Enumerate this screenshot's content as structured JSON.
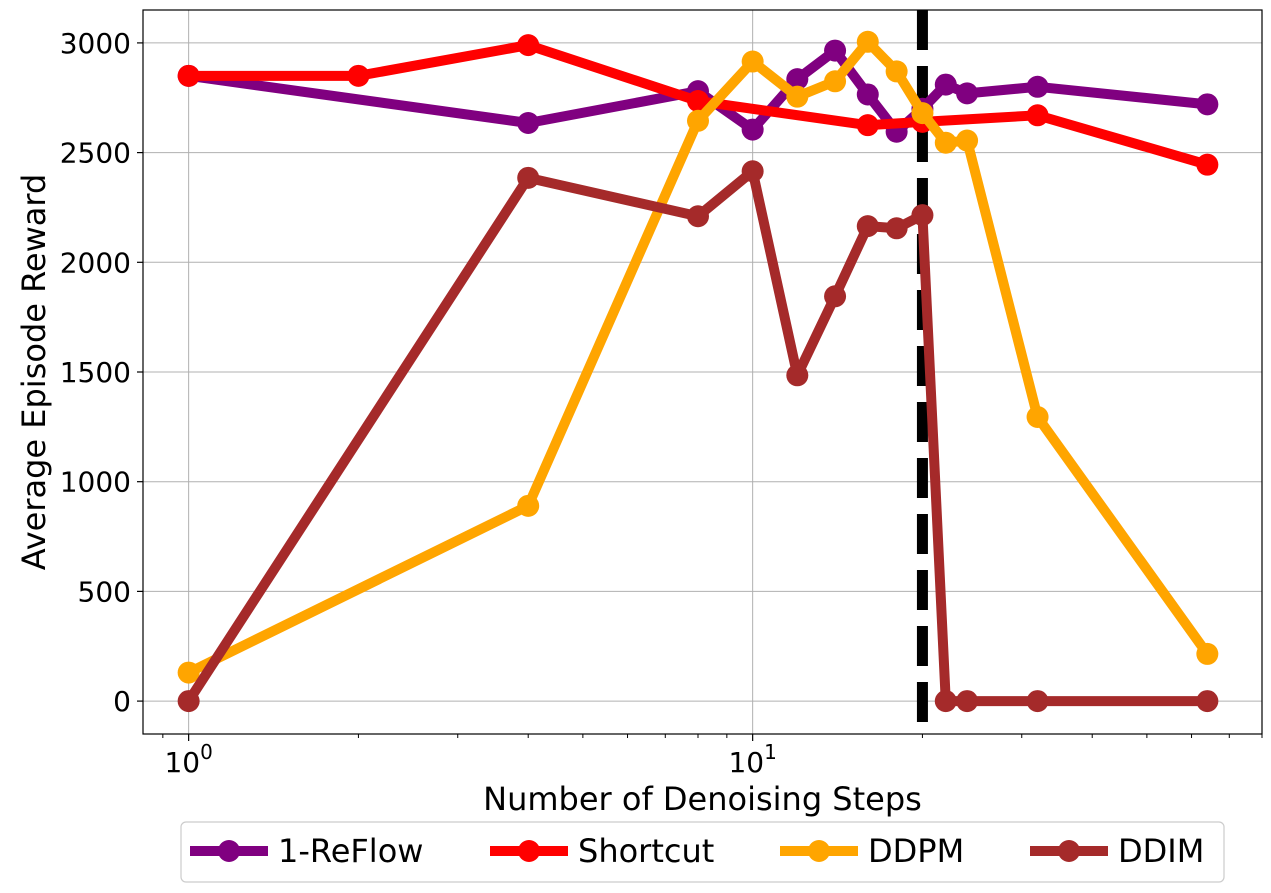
{
  "chart_data": {
    "type": "line",
    "title": "",
    "xlabel": "Number of Denoising Steps",
    "ylabel": "Average Episode Reward",
    "xscale": "log",
    "xlim": [
      0.83,
      80
    ],
    "ylim": [
      -150,
      3150
    ],
    "grid": true,
    "legend_position": "bottom-center-outside",
    "xticks": [
      {
        "base": "10",
        "exp": "0",
        "value": 1
      },
      {
        "base": "10",
        "exp": "1",
        "value": 10
      }
    ],
    "yticks": [
      {
        "label": "0",
        "value": 0
      },
      {
        "label": "500",
        "value": 500
      },
      {
        "label": "1000",
        "value": 1000
      },
      {
        "label": "1500",
        "value": 1500
      },
      {
        "label": "2000",
        "value": 2000
      },
      {
        "label": "2500",
        "value": 2500
      },
      {
        "label": "3000",
        "value": 3000
      }
    ],
    "vline": {
      "x": 20,
      "style": "dashed",
      "color": "#000000"
    },
    "series": [
      {
        "name": "1-ReFlow",
        "color": "#800080",
        "x": [
          1,
          4,
          8,
          10,
          12,
          14,
          16,
          18,
          20,
          22,
          24,
          32,
          64
        ],
        "y": [
          2850,
          2635,
          2780,
          2605,
          2835,
          2965,
          2765,
          2595,
          2700,
          2810,
          2770,
          2800,
          2720
        ]
      },
      {
        "name": "Shortcut",
        "color": "#ff0000",
        "x": [
          1,
          2,
          4,
          8,
          16,
          20,
          32,
          64
        ],
        "y": [
          2850,
          2850,
          2990,
          2735,
          2625,
          2640,
          2670,
          2445
        ]
      },
      {
        "name": "DDPM",
        "color": "#ffa500",
        "x": [
          1,
          4,
          8,
          10,
          12,
          14,
          16,
          18,
          20,
          22,
          24,
          32,
          64
        ],
        "y": [
          130,
          890,
          2645,
          2915,
          2755,
          2825,
          3005,
          2870,
          2680,
          2545,
          2555,
          1295,
          215
        ]
      },
      {
        "name": "DDIM",
        "color": "#a52a2a",
        "x": [
          1,
          4,
          8,
          10,
          12,
          14,
          16,
          18,
          20,
          22,
          24,
          32,
          64
        ],
        "y": [
          0,
          2385,
          2210,
          2415,
          1485,
          1845,
          2165,
          2155,
          2215,
          0,
          0,
          0,
          0
        ]
      }
    ]
  }
}
